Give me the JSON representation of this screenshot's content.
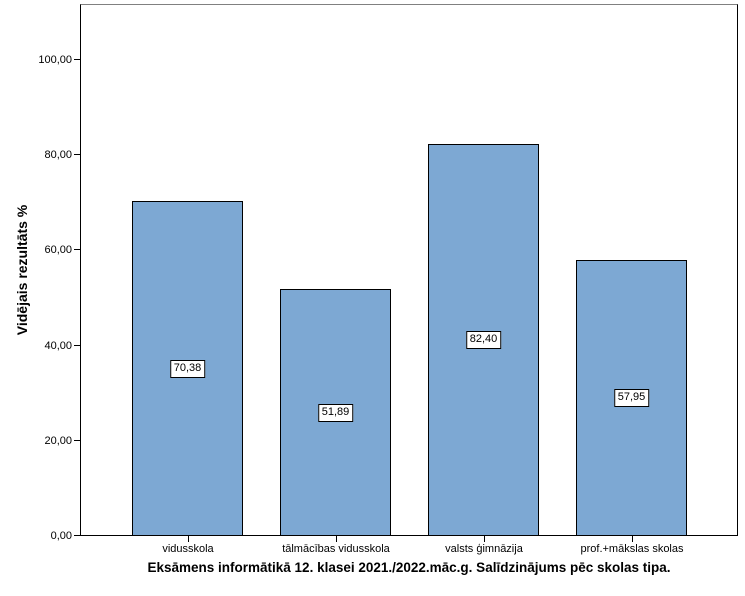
{
  "chart_data": {
    "type": "bar",
    "title": "Eksāmens informātikā 12. klasei 2021./2022.māc.g. Salīdzinājums pēc skolas tipa.",
    "ylabel": "Vidējais rezultāts %",
    "xlabel": "",
    "categories": [
      "vidusskola",
      "tālmācības vidusskola",
      "valsts ģimnāzija",
      "prof.+mākslas skolas"
    ],
    "values": [
      70.38,
      51.89,
      82.4,
      57.95
    ],
    "value_labels": [
      "70,38",
      "51,89",
      "82,40",
      "57,95"
    ],
    "ylim": [
      0,
      100
    ],
    "yticks": [
      0,
      20,
      40,
      60,
      80,
      100
    ],
    "ytick_labels": [
      "0,00",
      "20,00",
      "40,00",
      "60,00",
      "80,00",
      "100,00"
    ],
    "grid": false,
    "legend": "none",
    "colors": {
      "bar_fill": "#7DA8D3",
      "bar_border": "#000000",
      "axis": "#000000",
      "frame_top": "#808080",
      "background": "#ffffff"
    }
  }
}
